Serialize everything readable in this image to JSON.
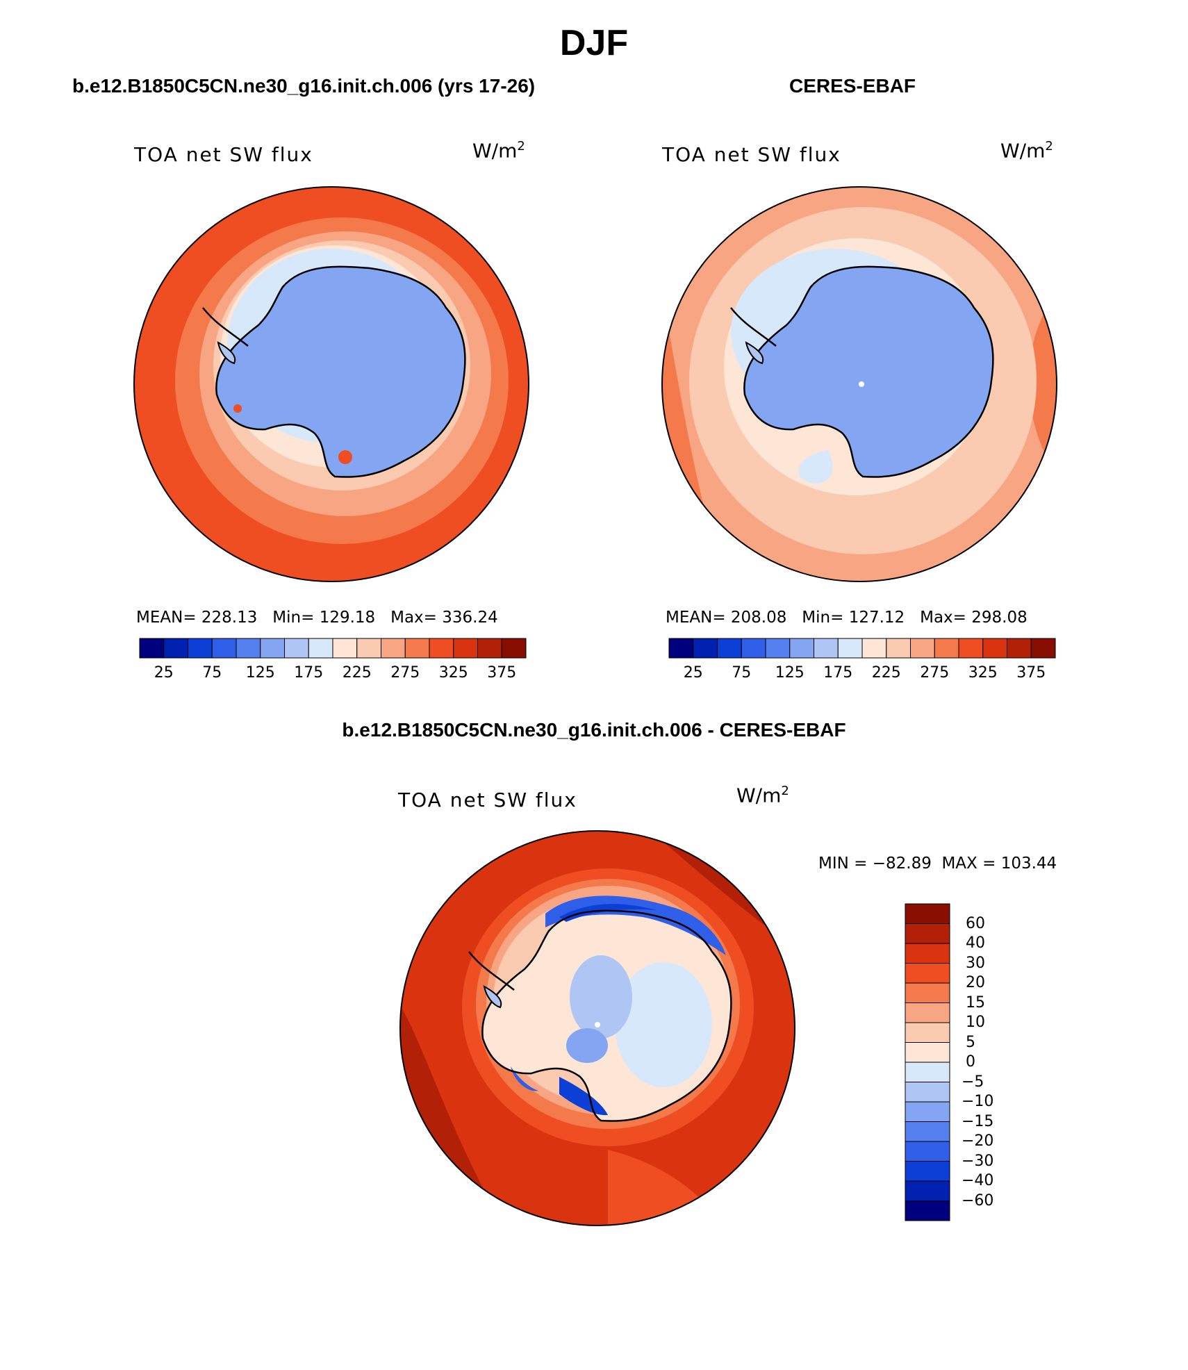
{
  "figure": {
    "title": "DJF",
    "left_title": "b.e12.B1850C5CN.ne30_g16.init.ch.006 (yrs 17-26)",
    "right_title": "CERES-EBAF",
    "diff_title": "b.e12.B1850C5CN.ne30_g16.init.ch.006 - CERES-EBAF"
  },
  "panels": {
    "model": {
      "variable": "TOA net SW flux",
      "units_base": "W/m",
      "units_exp": "2",
      "stats": "MEAN= 228.13   Min= 129.18   Max= 336.24",
      "mean": 228.13,
      "min": 129.18,
      "max": 336.24
    },
    "obs": {
      "variable": "TOA net SW flux",
      "units_base": "W/m",
      "units_exp": "2",
      "stats": "MEAN= 208.08   Min= 127.12   Max= 298.08",
      "mean": 208.08,
      "min": 127.12,
      "max": 298.08
    },
    "diff": {
      "variable": "TOA net SW flux",
      "units_base": "W/m",
      "units_exp": "2",
      "stats": "MIN = −82.89  MAX = 103.44",
      "min": -82.89,
      "max": 103.44
    }
  },
  "colorbars": {
    "abs_ticks": [
      "25",
      "75",
      "125",
      "175",
      "225",
      "275",
      "325",
      "375"
    ],
    "abs_colors": [
      "#00007f",
      "#0020b0",
      "#0b3fd6",
      "#2f5fe8",
      "#5580ef",
      "#84a6f2",
      "#afc6f5",
      "#d8e8fb",
      "#fde6d6",
      "#fbcbb1",
      "#f7a582",
      "#f47a4b",
      "#ef4e22",
      "#d9340f",
      "#b32008",
      "#860d00"
    ],
    "diff_ticks": [
      "60",
      "40",
      "30",
      "20",
      "15",
      "10",
      "5",
      "0",
      "−5",
      "−10",
      "−15",
      "−20",
      "−30",
      "−40",
      "−60"
    ],
    "diff_colors": [
      "#8a0f02",
      "#b32008",
      "#d9340f",
      "#ef4e22",
      "#f47a4b",
      "#f7a582",
      "#fbcbb1",
      "#fde6d6",
      "#d8e8fb",
      "#afc6f5",
      "#84a6f2",
      "#5580ef",
      "#2f5fe8",
      "#0b3fd6",
      "#0020b0",
      "#00007f"
    ]
  },
  "map_colors": {
    "land_blue": "#84a6f2",
    "land_blue_light": "#afc6f5",
    "ice_pale": "#d8e8fb",
    "cream": "#fde6d6",
    "peach": "#fbcbb1",
    "salmon": "#f7a582",
    "orange": "#f47a4b",
    "red_orange": "#ef4e22",
    "red": "#d9340f",
    "dark_red": "#b32008",
    "navy": "#0020b0"
  }
}
